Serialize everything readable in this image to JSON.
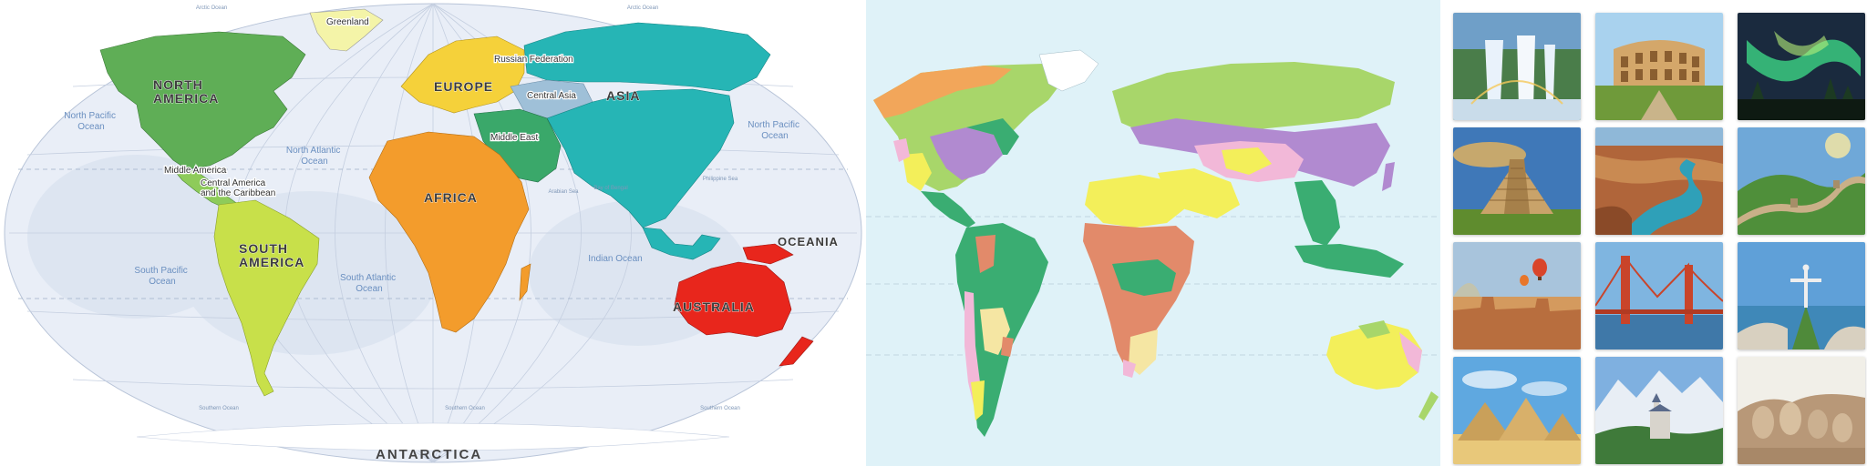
{
  "political_map": {
    "continents": [
      {
        "name": "NORTH AMERICA",
        "lines": [
          "NORTH",
          "AMERICA"
        ],
        "color": "#5fae56"
      },
      {
        "name": "SOUTH AMERICA",
        "lines": [
          "SOUTH",
          "AMERICA"
        ],
        "color": "#c8e04a"
      },
      {
        "name": "EUROPE",
        "lines": [
          "EUROPE"
        ],
        "color": "#f5d13a"
      },
      {
        "name": "AFRICA",
        "lines": [
          "AFRICA"
        ],
        "color": "#f39c2c"
      },
      {
        "name": "ASIA",
        "lines": [
          "ASIA"
        ],
        "color": "#26b5b5"
      },
      {
        "name": "AUSTRALIA",
        "lines": [
          "AUSTRALIA"
        ],
        "color": "#e8261c"
      },
      {
        "name": "OCEANIA",
        "lines": [
          "OCEANIA"
        ],
        "color": "#e8261c"
      },
      {
        "name": "ANTARCTICA",
        "lines": [
          "ANTARCTICA"
        ],
        "color": "#ffffff"
      }
    ],
    "regions": {
      "greenland": "Greenland",
      "russian_federation": "Russian Federation",
      "central_asia": "Central Asia",
      "middle_east": "Middle East",
      "middle_america": "Middle America",
      "central_america": "Central America",
      "caribbean": "and the Caribbean"
    },
    "oceans": {
      "north_pacific_left": [
        "North Pacific",
        "Ocean"
      ],
      "north_pacific_right": [
        "North Pacific",
        "Ocean"
      ],
      "north_atlantic": [
        "North Atlantic",
        "Ocean"
      ],
      "south_pacific": [
        "South Pacific",
        "Ocean"
      ],
      "south_atlantic": [
        "South Atlantic",
        "Ocean"
      ],
      "indian": "Indian Ocean",
      "arctic_left": "Arctic Ocean",
      "arctic_right": "Arctic Ocean",
      "southern_left": "Southern Ocean",
      "southern_mid": "Southern Ocean",
      "southern_right": "Southern Ocean",
      "arabian_sea": "Arabian Sea",
      "bay_of_bengal": "Bay of Bengal",
      "philippine_sea": "Philippine Sea"
    }
  },
  "climate_map": {
    "zone_colors": [
      "#f2a65a",
      "#a8d66a",
      "#3aad72",
      "#b18ad0",
      "#f3ef5a",
      "#f2b8d8",
      "#e28a6a",
      "#ffffff",
      "#f5e6a3"
    ]
  },
  "gallery": {
    "tiles": [
      {
        "icon": "waterfall-icon"
      },
      {
        "icon": "colosseum-icon"
      },
      {
        "icon": "aurora-icon"
      },
      {
        "icon": "pyramid-temple-icon"
      },
      {
        "icon": "canyon-icon"
      },
      {
        "icon": "great-wall-icon"
      },
      {
        "icon": "balloons-desert-icon"
      },
      {
        "icon": "bridge-icon"
      },
      {
        "icon": "christ-statue-icon"
      },
      {
        "icon": "pyramids-icon"
      },
      {
        "icon": "castle-icon"
      },
      {
        "icon": "mount-rushmore-icon"
      }
    ]
  }
}
